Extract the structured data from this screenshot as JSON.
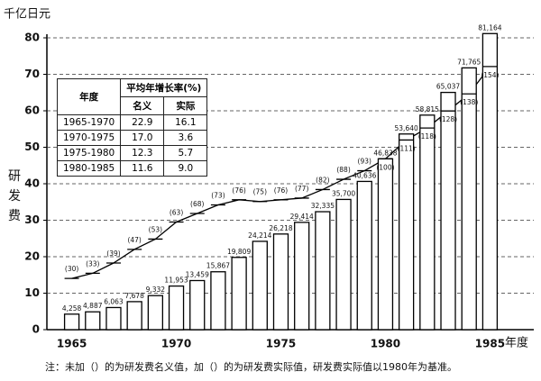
{
  "chart_data": {
    "type": "bar",
    "y_axis_label": "千亿日元",
    "side_label": "研发费",
    "x_axis_label": "年度",
    "note": "注：未加（）的为研发费名义值，加（）的为研发费实际值，研发费实际值以1980年为基准。",
    "categories": [
      "1965",
      null,
      null,
      null,
      null,
      "1970",
      null,
      null,
      null,
      null,
      "1975",
      null,
      null,
      null,
      null,
      "1980",
      null,
      null,
      null,
      null,
      "1985"
    ],
    "series": [
      {
        "name": "名义",
        "color": "#000000",
        "values": [
          4.258,
          4.887,
          6.063,
          7.678,
          9.332,
          11.953,
          13.459,
          15.867,
          19.809,
          24.214,
          26.218,
          29.414,
          32.335,
          35.7,
          40.636,
          46.838,
          53.64,
          58.815,
          65.037,
          71.765,
          81.164
        ],
        "value_labels": [
          "4,258",
          "4,887",
          "6,063",
          "7,678",
          "9,332",
          "11,953",
          "13,459",
          "15,867",
          "19,809",
          "24,214",
          "26,218",
          "29,414",
          "32,335",
          "35,700",
          "40,636",
          "46,838",
          "53,640",
          "58,815",
          "65,037",
          "71,765",
          "81,164"
        ]
      },
      {
        "name": "实际",
        "color": "#000000",
        "axis": "y2",
        "values": [
          30,
          33,
          39,
          47,
          53,
          63,
          68,
          73,
          76,
          75,
          76,
          77,
          82,
          88,
          93,
          100,
          111,
          118,
          128,
          138,
          154
        ],
        "value_labels": [
          "(30)",
          "(33)",
          "(39)",
          "(47)",
          "(53)",
          "(63)",
          "(68)",
          "(73)",
          "(76)",
          "(75)",
          "(76)",
          "(77)",
          "(82)",
          "(88)",
          "(93)",
          "(100)",
          "(111)",
          "(118)",
          "(128)",
          "(138)",
          "(154)"
        ]
      }
    ],
    "ylim": [
      0,
      80
    ],
    "yticks": [
      0,
      10,
      20,
      30,
      40,
      50,
      60,
      70,
      80
    ],
    "y2lim": [
      0,
      170.8
    ],
    "grid": true,
    "table": {
      "header": [
        "年度",
        "平均年增长率(%)",
        "名义",
        "实际"
      ],
      "rows": [
        [
          "1965-1970",
          "22.9",
          "16.1"
        ],
        [
          "1970-1975",
          "17.0",
          "3.6"
        ],
        [
          "1975-1980",
          "12.3",
          "5.7"
        ],
        [
          "1980-1985",
          "11.6",
          "9.0"
        ]
      ]
    }
  }
}
